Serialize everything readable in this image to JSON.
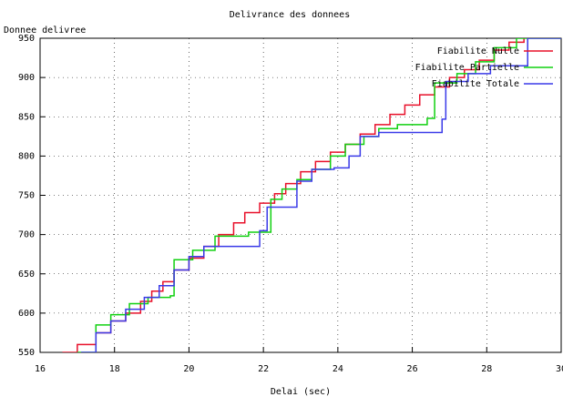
{
  "chart_data": {
    "type": "step",
    "title": "Delivrance des donnees",
    "y_label": "Donnee delivree",
    "x_label": "Delai (sec)",
    "xlim": [
      16,
      30
    ],
    "ylim": [
      550,
      950
    ],
    "xticks": [
      16,
      18,
      20,
      22,
      24,
      26,
      28,
      30
    ],
    "yticks": [
      550,
      600,
      650,
      700,
      750,
      800,
      850,
      900,
      950
    ],
    "grid": true,
    "legend": "top-right",
    "series": [
      {
        "name": "Fiabilite Nulle",
        "color": "#e8102a",
        "x": [
          16.6,
          17.0,
          17.5,
          17.9,
          18.3,
          18.7,
          19.0,
          19.3,
          19.6,
          20.0,
          20.4,
          20.8,
          21.2,
          21.5,
          21.9,
          22.3,
          22.6,
          23.0,
          23.4,
          23.8,
          24.2,
          24.6,
          25.0,
          25.4,
          25.8,
          26.2,
          26.6,
          27.0,
          27.4,
          27.8,
          28.2,
          28.6,
          29.0
        ],
        "values": [
          550,
          560,
          575,
          590,
          600,
          615,
          628,
          640,
          655,
          670,
          685,
          700,
          715,
          728,
          740,
          752,
          765,
          780,
          793,
          805,
          815,
          828,
          840,
          853,
          865,
          878,
          888,
          900,
          910,
          922,
          935,
          945,
          955
        ]
      },
      {
        "name": "Fiabilite Partielle",
        "color": "#10d010",
        "x": [
          17.0,
          17.5,
          17.9,
          18.4,
          18.9,
          19.5,
          19.6,
          20.1,
          20.7,
          21.6,
          22.2,
          22.5,
          22.9,
          23.3,
          23.8,
          24.2,
          24.7,
          25.1,
          25.6,
          26.4,
          26.6,
          27.2,
          27.7,
          28.2,
          28.8
        ],
        "values": [
          550,
          585,
          598,
          612,
          620,
          622,
          668,
          680,
          698,
          703,
          745,
          758,
          770,
          783,
          800,
          815,
          825,
          835,
          840,
          848,
          893,
          905,
          920,
          938,
          950
        ]
      },
      {
        "name": "Fiabilite Totale",
        "color": "#3a3ae8",
        "x": [
          17.1,
          17.5,
          17.9,
          18.3,
          18.8,
          19.2,
          19.6,
          20.0,
          20.4,
          21.9,
          22.1,
          22.9,
          23.3,
          23.9,
          24.3,
          24.6,
          25.1,
          25.4,
          26.8,
          26.9,
          27.5,
          28.1,
          29.1
        ],
        "values": [
          550,
          575,
          590,
          605,
          620,
          635,
          655,
          672,
          685,
          705,
          735,
          768,
          783,
          785,
          800,
          825,
          830,
          830,
          847,
          895,
          905,
          915,
          950
        ]
      }
    ]
  }
}
